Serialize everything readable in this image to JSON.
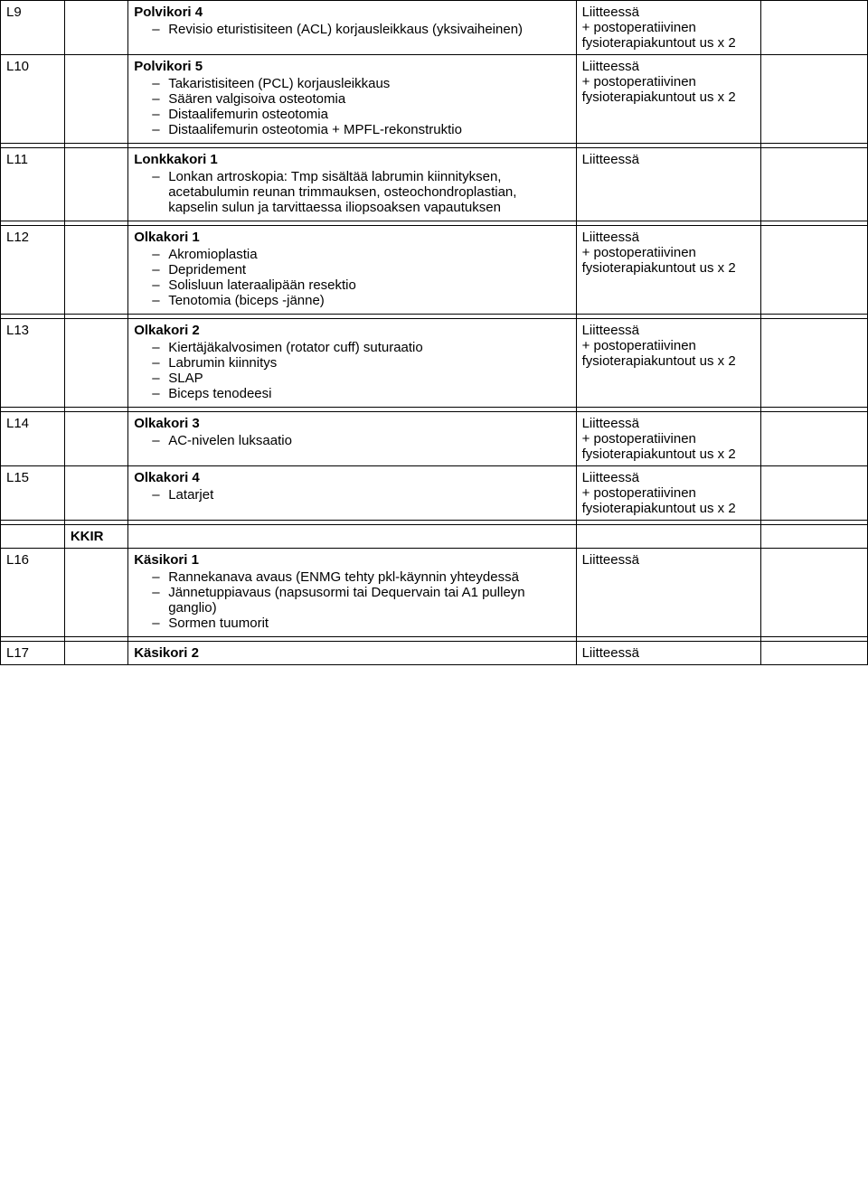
{
  "rows": [
    {
      "code": "L9",
      "title": "Polvikori 4",
      "items": [
        "Revisio eturistisiteen (ACL) korjausleikkaus (yksivaiheinen)"
      ],
      "liite": "Liitteessä\n+ postoperatiivinen fysioterapiakuntout us x 2"
    },
    {
      "code": "L10",
      "title": "Polvikori 5",
      "items": [
        "Takaristisiteen (PCL) korjausleikkaus",
        "Säären valgisoiva osteotomia",
        "Distaalifemurin osteotomia",
        "Distaalifemurin osteotomia + MPFL-rekonstruktio"
      ],
      "liite": "Liitteessä\n+ postoperatiivinen fysioterapiakuntout us x 2"
    },
    {
      "code": "L11",
      "title": "Lonkkakori 1",
      "items": [
        "Lonkan artroskopia: Tmp sisältää labrumin kiinnityksen, acetabulumin reunan trimmauksen, osteochondroplastian, kapselin sulun ja tarvittaessa iliopsoaksen vapautuksen"
      ],
      "liite": "Liitteessä"
    },
    {
      "code": "L12",
      "title": "Olkakori 1",
      "items": [
        "Akromioplastia",
        "Depridement",
        "Solisluun lateraalipään resektio",
        "Tenotomia (biceps -jänne)"
      ],
      "liite": "Liitteessä\n+ postoperatiivinen fysioterapiakuntout us x 2"
    },
    {
      "code": "L13",
      "title": "Olkakori 2",
      "items": [
        "Kiertäjäkalvosimen (rotator cuff) suturaatio",
        "Labrumin kiinnitys",
        "SLAP",
        "Biceps tenodeesi"
      ],
      "liite": "Liitteessä\n+ postoperatiivinen fysioterapiakuntout us x 2"
    },
    {
      "code": "L14",
      "title": "Olkakori 3",
      "items": [
        "AC-nivelen luksaatio"
      ],
      "liite": "Liitteessä\n+ postoperatiivinen fysioterapiakuntout us x 2"
    },
    {
      "code": "L15",
      "title": "Olkakori 4",
      "items": [
        "Latarjet"
      ],
      "liite": "Liitteessä\n+ postoperatiivinen fysioterapiakuntout us x 2"
    },
    {
      "code": "L16",
      "kkir": "KKIR",
      "title": "Käsikori 1",
      "items": [
        "Rannekanava avaus (ENMG tehty pkl-käynnin yhteydessä",
        "Jännetuppiavaus (napsusormi tai Dequervain tai A1 pulleyn ganglio)",
        "Sormen tuumorit"
      ],
      "liite": "Liitteessä"
    },
    {
      "code": "L17",
      "title": "Käsikori 2",
      "items": [],
      "liite": "Liitteessä"
    }
  ]
}
